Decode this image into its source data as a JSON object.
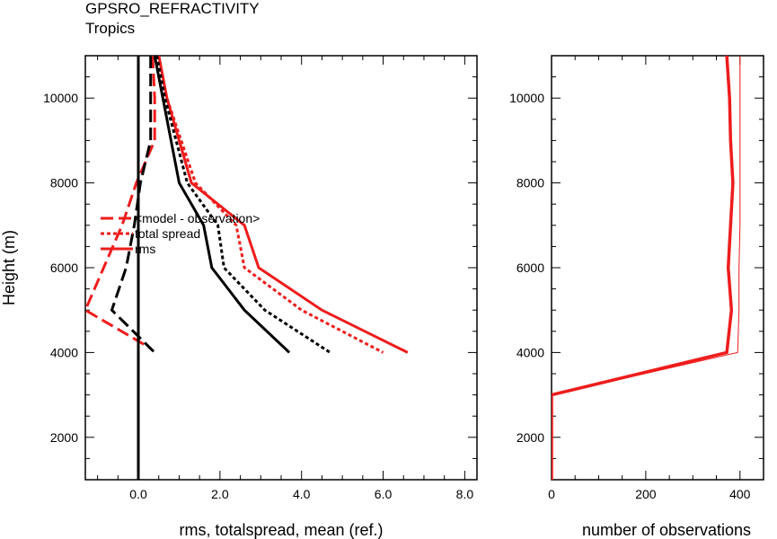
{
  "title": "GPSRO_REFRACTIVITY",
  "subtitle": "Tropics",
  "colors": {
    "red": "#ee1c1c",
    "black": "#000000"
  },
  "chart_data": [
    {
      "type": "line",
      "panel": "left",
      "xlabel": "rms, totalspread, mean (ref.)",
      "ylabel": "Height (m)",
      "xlim": [
        -1.3,
        8.3
      ],
      "ylim": [
        1000,
        11000
      ],
      "xticks": [
        0.0,
        2.0,
        4.0,
        6.0,
        8.0
      ],
      "xtick_labels": [
        "0.0",
        "2.0",
        "4.0",
        "6.0",
        "8.0"
      ],
      "yticks": [
        2000,
        4000,
        6000,
        8000,
        10000
      ],
      "ytick_labels": [
        "2000",
        "4000",
        "6000",
        "8000",
        "10000"
      ],
      "legend": {
        "placement": "middle-left",
        "entries": [
          "<model - observation>",
          "total spread",
          "rms"
        ]
      },
      "series": [
        {
          "name": "<model - observation>",
          "color": "red",
          "dash": "long",
          "width": 3,
          "points": [
            [
              0.35,
              11000
            ],
            [
              0.4,
              10000
            ],
            [
              0.4,
              9000
            ],
            [
              -0.05,
              8000
            ],
            [
              -0.4,
              7000
            ],
            [
              -0.85,
              6000
            ],
            [
              -1.3,
              5000
            ],
            [
              0.3,
              4100
            ]
          ]
        },
        {
          "name": "total spread",
          "color": "red",
          "dash": "dot",
          "width": 3,
          "points": [
            [
              0.5,
              11000
            ],
            [
              0.7,
              10000
            ],
            [
              1.4,
              8000
            ],
            [
              2.4,
              7000
            ],
            [
              2.6,
              6000
            ],
            [
              4.0,
              5000
            ],
            [
              6.0,
              4000
            ]
          ]
        },
        {
          "name": "rms",
          "color": "red",
          "dash": "solid",
          "width": 3,
          "points": [
            [
              0.5,
              11000
            ],
            [
              0.7,
              10000
            ],
            [
              1.3,
              8000
            ],
            [
              2.6,
              7000
            ],
            [
              2.95,
              6000
            ],
            [
              4.5,
              5000
            ],
            [
              6.6,
              4000
            ]
          ]
        },
        {
          "color": "black",
          "dash": "long",
          "width": 3,
          "points": [
            [
              0.3,
              11000
            ],
            [
              0.3,
              10000
            ],
            [
              0.3,
              9000
            ],
            [
              0.05,
              8000
            ],
            [
              -0.1,
              7000
            ],
            [
              -0.3,
              6000
            ],
            [
              -0.65,
              5000
            ],
            [
              0.4,
              4000
            ]
          ]
        },
        {
          "color": "black",
          "dash": "dot",
          "width": 3,
          "points": [
            [
              0.45,
              11000
            ],
            [
              0.65,
              10000
            ],
            [
              1.2,
              8000
            ],
            [
              1.95,
              7000
            ],
            [
              2.1,
              6000
            ],
            [
              3.1,
              5000
            ],
            [
              4.7,
              4000
            ]
          ]
        },
        {
          "color": "black",
          "dash": "solid",
          "width": 3,
          "points": [
            [
              0.4,
              11000
            ],
            [
              0.6,
              10000
            ],
            [
              1.0,
              8000
            ],
            [
              1.6,
              7000
            ],
            [
              1.8,
              6000
            ],
            [
              2.6,
              5000
            ],
            [
              3.7,
              4000
            ]
          ]
        },
        {
          "color": "black",
          "dash": "solid",
          "width": 3,
          "points": [
            [
              0.0,
              1000
            ],
            [
              0.0,
              11000
            ]
          ]
        }
      ]
    },
    {
      "type": "line",
      "panel": "right",
      "xlabel": "number of observations",
      "xlim": [
        0,
        450
      ],
      "ylim": [
        1000,
        11000
      ],
      "xticks": [
        0,
        200,
        400
      ],
      "xtick_labels": [
        "0",
        "200",
        "400"
      ],
      "yticks": [
        2000,
        4000,
        6000,
        8000,
        10000
      ],
      "ytick_labels": [
        "2000",
        "4000",
        "6000",
        "8000",
        "10000"
      ],
      "series": [
        {
          "color": "red",
          "dash": "solid",
          "width": 1,
          "points": [
            [
              0,
              1000
            ],
            [
              0,
              3000
            ],
            [
              395,
              4000
            ],
            [
              398,
              5000
            ],
            [
              398,
              6000
            ],
            [
              400,
              7000
            ],
            [
              400,
              8000
            ],
            [
              400,
              9000
            ],
            [
              400,
              10000
            ],
            [
              400,
              11000
            ]
          ]
        },
        {
          "color": "red",
          "dash": "solid",
          "width": 3.5,
          "points": [
            [
              0,
              1000
            ],
            [
              0,
              3000
            ],
            [
              372,
              4000
            ],
            [
              382,
              5000
            ],
            [
              375,
              6000
            ],
            [
              380,
              7000
            ],
            [
              385,
              8000
            ],
            [
              380,
              9000
            ],
            [
              378,
              10000
            ],
            [
              372,
              11000
            ]
          ]
        }
      ]
    }
  ]
}
